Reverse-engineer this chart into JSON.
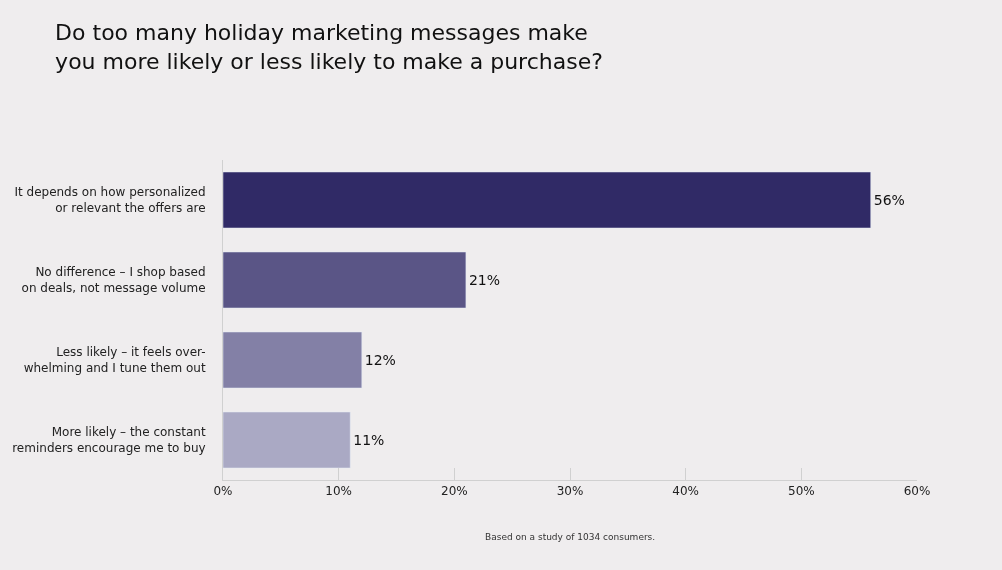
{
  "chart_data": {
    "type": "bar",
    "orientation": "horizontal",
    "title": "Do too many holiday marketing messages make\nyou more likely or less likely to make a purchase?",
    "categories": [
      "It depends on how personalized\nor relevant the offers are",
      "No difference – I shop based\non deals, not message volume",
      "Less likely – it feels over-\nwhelming and I tune them out",
      "More likely – the constant\nreminders encourage me to buy"
    ],
    "values": [
      56,
      21,
      12,
      11
    ],
    "colors": [
      "#302a66",
      "#5a5586",
      "#8380a6",
      "#aaa9c4"
    ],
    "value_labels": [
      "56%",
      "21%",
      "12%",
      "11%"
    ],
    "xlim": [
      0,
      60
    ],
    "xticks": [
      {
        "value": 0,
        "label": "0%"
      },
      {
        "value": 10,
        "label": "10%"
      },
      {
        "value": 20,
        "label": "20%"
      },
      {
        "value": 30,
        "label": "30%"
      },
      {
        "value": 40,
        "label": "40%"
      },
      {
        "value": 50,
        "label": "50%"
      },
      {
        "value": 60,
        "label": "60%"
      }
    ],
    "grid": false,
    "annotations": [
      "Based on a study of 1034 consumers."
    ]
  }
}
